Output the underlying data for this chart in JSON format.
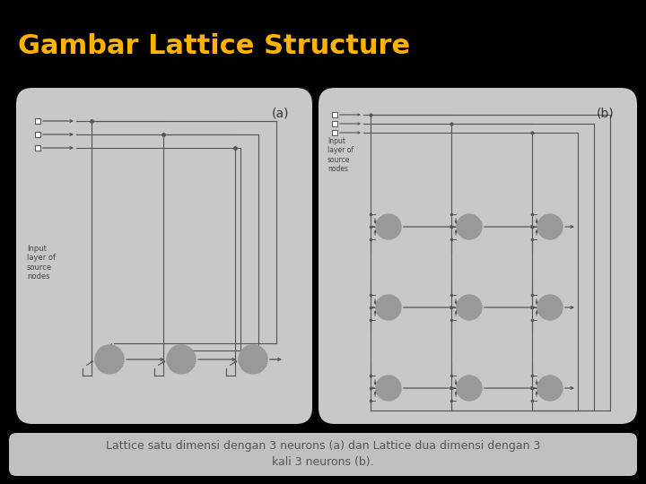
{
  "title": "Gambar Lattice Structure",
  "title_color": "#FFB300",
  "title_fontsize": 22,
  "bg_color": "#000000",
  "panel_bg": "#c8c8c8",
  "panel_inner_bg": "#d5d5d5",
  "caption": "Lattice satu dimensi dengan 3 neurons (a) dan Lattice dua dimensi dengan 3\nkali 3 neurons (b).",
  "caption_fontsize": 9,
  "label_a": "(a)",
  "label_b": "(b)",
  "input_label": "Input\nlayer of\nsource\nnodes",
  "line_color": "#555555",
  "neuron_color": "#999999",
  "text_color": "#444444",
  "panel_a": [
    18,
    98,
    330,
    375
  ],
  "panel_b": [
    355,
    98,
    355,
    375
  ],
  "caption_panel": [
    10,
    483,
    700,
    48
  ]
}
